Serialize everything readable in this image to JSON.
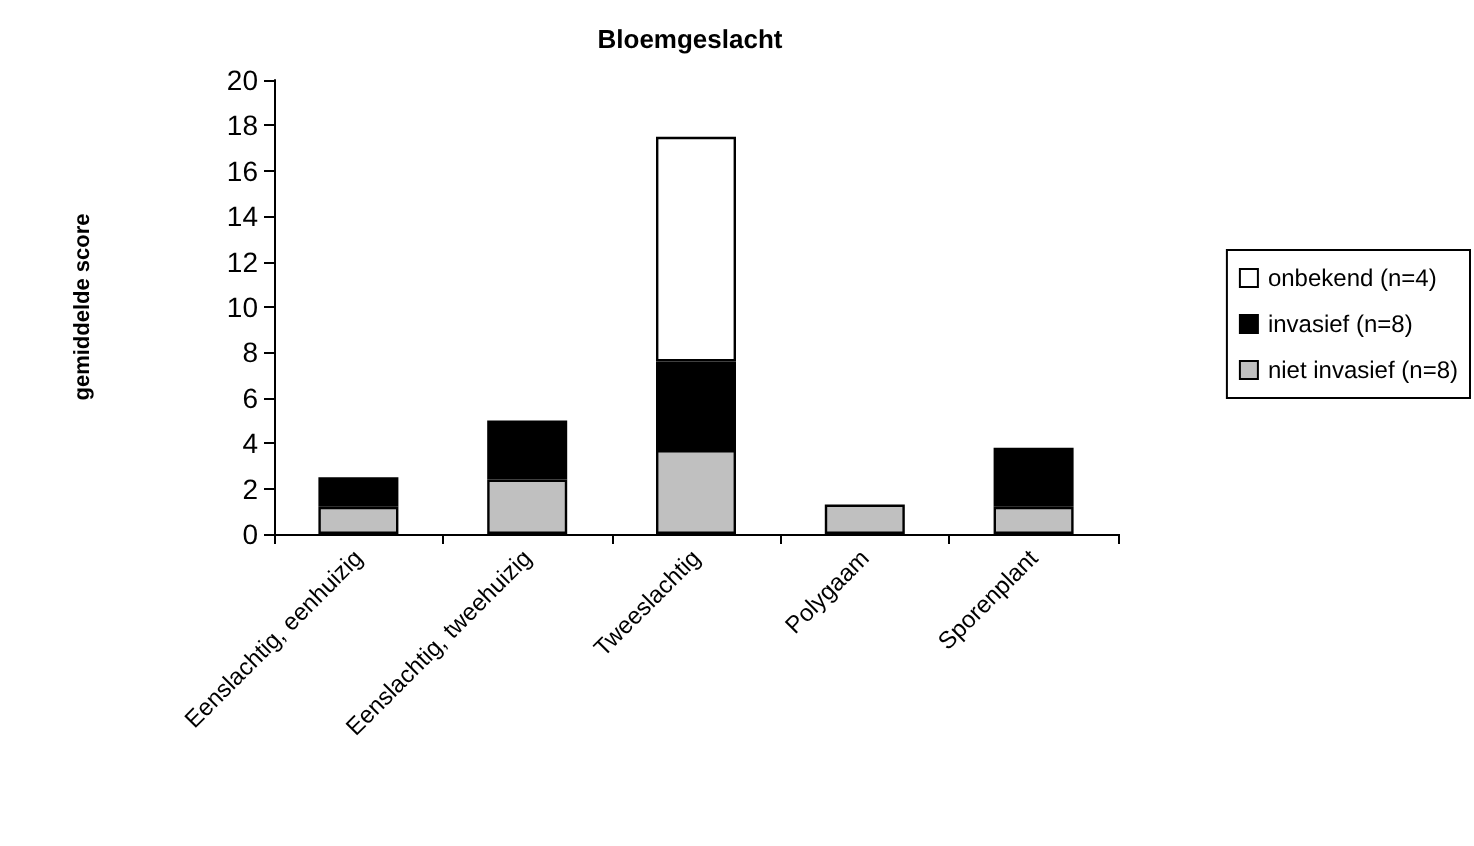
{
  "chart_data": {
    "type": "bar",
    "title": "Bloemgeslacht",
    "ylabel": "gemiddelde score",
    "categories": [
      "Eenslachtig, eenhuizig",
      "Eenslachtig, tweehuizig",
      "Tweeslachtig",
      "Polygaam",
      "Sporenplant"
    ],
    "stacked": true,
    "series": [
      {
        "name": "niet invasief (n=8)",
        "color": "#c0c0c0",
        "values": [
          1.2,
          2.4,
          3.7,
          1.3,
          1.2
        ]
      },
      {
        "name": "invasief (n=8)",
        "color": "#000000",
        "values": [
          1.3,
          2.6,
          3.9,
          null,
          2.6
        ]
      },
      {
        "name": "onbekend (n=4)",
        "color": "#ffffff",
        "values": [
          null,
          null,
          9.9,
          null,
          null
        ]
      }
    ],
    "ylim": [
      0,
      20
    ],
    "yticks": [
      0,
      2,
      4,
      6,
      8,
      10,
      12,
      14,
      16,
      18,
      20
    ],
    "grid": false,
    "legend": "right"
  }
}
